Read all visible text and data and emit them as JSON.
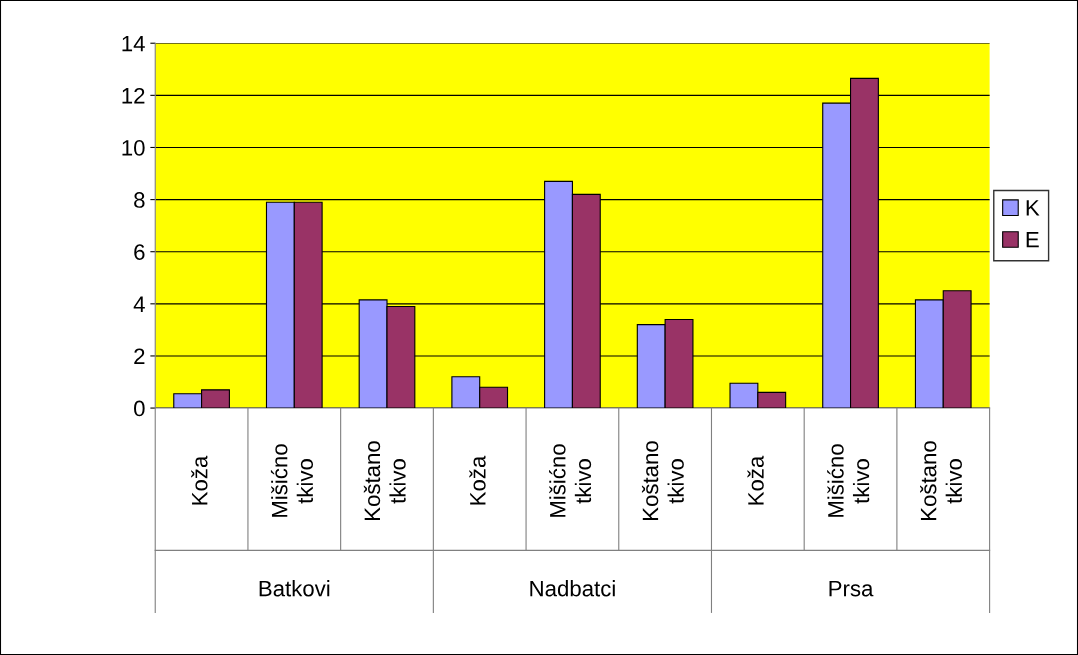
{
  "chart_data": {
    "type": "bar",
    "categories": [
      "Koža",
      "Mišićno tkivo",
      "Koštano tkivo",
      "Koža",
      "Mišićno tkivo",
      "Koštano tkivo",
      "Koža",
      "Mišićno tkivo",
      "Koštano tkivo"
    ],
    "series": [
      {
        "name": "K",
        "color": "#9999ff",
        "values": [
          0.55,
          7.9,
          4.15,
          1.2,
          8.7,
          3.2,
          0.95,
          11.7,
          4.15
        ]
      },
      {
        "name": "E",
        "color": "#993366",
        "values": [
          0.7,
          7.9,
          3.9,
          0.8,
          8.2,
          3.4,
          0.6,
          12.65,
          4.5
        ]
      }
    ],
    "annotations": [
      "Batkovi",
      "Nadbatci",
      "Prsa"
    ],
    "ylim": [
      0,
      14
    ],
    "yticks": [
      0,
      2,
      4,
      6,
      8,
      10,
      12,
      14
    ],
    "grid": "y",
    "legend": "right"
  }
}
